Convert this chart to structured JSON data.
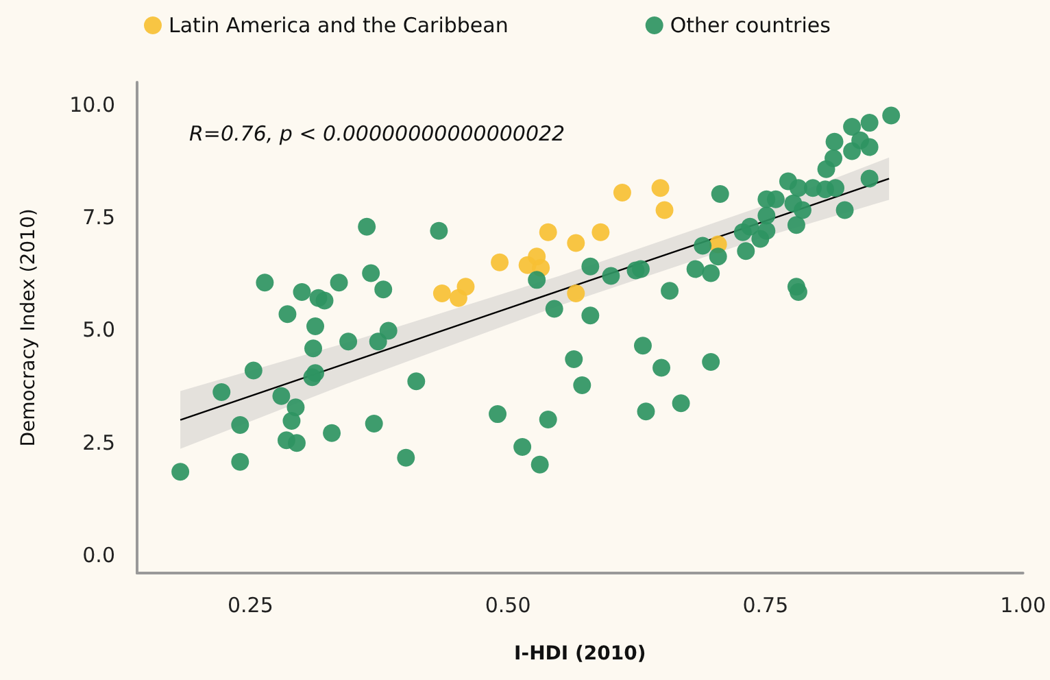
{
  "chart_data": {
    "type": "scatter",
    "xlabel": "I-HDI (2010)",
    "ylabel": "Democracy Index (2010)",
    "annotations": [
      "R=0.76, p < 0.00000000000000022"
    ],
    "xlim": [
      0.14,
      1.0
    ],
    "xticks": [
      {
        "value": 0.25,
        "label": "0.25"
      },
      {
        "value": 0.5,
        "label": "0.50"
      },
      {
        "value": 0.75,
        "label": "0.75"
      },
      {
        "value": 1.0,
        "label": "1.00"
      }
    ],
    "ylim": [
      -0.4,
      10.5
    ],
    "yticks": [
      {
        "value": 0,
        "label": "0.0"
      },
      {
        "value": 2.5,
        "label": "2.5"
      },
      {
        "value": 5,
        "label": "5.0"
      },
      {
        "value": 7.5,
        "label": "7.5"
      },
      {
        "value": 10,
        "label": "10.0"
      }
    ],
    "grid": false,
    "legend": "top",
    "series": [
      {
        "name": "Latin America and the Caribbean",
        "marker": "circle",
        "color": "#f7c034",
        "x": [
          0.436,
          0.452,
          0.459,
          0.492,
          0.519,
          0.528,
          0.532,
          0.539,
          0.566,
          0.566,
          0.59,
          0.611,
          0.648,
          0.652,
          0.704
        ],
        "values": [
          5.81,
          5.71,
          5.96,
          6.5,
          6.44,
          6.63,
          6.38,
          7.17,
          6.93,
          5.81,
          7.17,
          8.05,
          8.15,
          7.66,
          6.9
        ]
      },
      {
        "name": "Other countries",
        "marker": "circle",
        "color": "#2e9462",
        "x": [
          0.182,
          0.222,
          0.24,
          0.24,
          0.253,
          0.264,
          0.28,
          0.286,
          0.29,
          0.294,
          0.285,
          0.295,
          0.3,
          0.31,
          0.313,
          0.311,
          0.313,
          0.316,
          0.322,
          0.329,
          0.336,
          0.345,
          0.363,
          0.367,
          0.37,
          0.374,
          0.379,
          0.384,
          0.401,
          0.411,
          0.433,
          0.49,
          0.514,
          0.528,
          0.531,
          0.539,
          0.545,
          0.564,
          0.572,
          0.58,
          0.58,
          0.6,
          0.624,
          0.629,
          0.631,
          0.634,
          0.649,
          0.657,
          0.668,
          0.689,
          0.704,
          0.682,
          0.697,
          0.728,
          0.735,
          0.731,
          0.745,
          0.751,
          0.751,
          0.751,
          0.76,
          0.78,
          0.777,
          0.786,
          0.772,
          0.782,
          0.796,
          0.808,
          0.818,
          0.827,
          0.809,
          0.816,
          0.817,
          0.834,
          0.834,
          0.842,
          0.851,
          0.851,
          0.851,
          0.872,
          0.78,
          0.782,
          0.706,
          0.697
        ],
        "values": [
          1.85,
          3.62,
          2.07,
          2.89,
          4.1,
          6.05,
          3.53,
          5.35,
          2.98,
          3.28,
          2.55,
          2.49,
          5.84,
          3.95,
          4.04,
          4.59,
          5.08,
          5.71,
          5.65,
          2.71,
          6.05,
          4.74,
          7.29,
          6.26,
          2.92,
          4.74,
          5.9,
          4.98,
          2.16,
          3.86,
          7.2,
          3.13,
          2.4,
          6.11,
          2.01,
          3.01,
          5.47,
          4.35,
          3.77,
          6.41,
          5.32,
          6.2,
          6.32,
          6.35,
          4.65,
          3.19,
          4.16,
          5.87,
          3.37,
          6.87,
          6.63,
          6.35,
          6.26,
          7.17,
          7.29,
          6.75,
          7.02,
          7.2,
          7.54,
          7.9,
          7.9,
          7.33,
          7.81,
          7.66,
          8.3,
          8.15,
          8.15,
          8.12,
          8.15,
          7.66,
          8.57,
          8.81,
          9.18,
          8.97,
          9.51,
          9.21,
          9.06,
          8.36,
          9.6,
          9.76,
          5.96,
          5.84,
          8.02,
          4.29
        ]
      },
      {
        "type": "line",
        "marker": "none",
        "color": "#000000",
        "x": [
          0.182,
          0.35,
          0.55,
          0.75,
          0.87
        ],
        "values": [
          3.0,
          4.31,
          5.87,
          7.42,
          8.36
        ],
        "lower": [
          2.36,
          3.86,
          5.54,
          7.07,
          7.89
        ],
        "upper": [
          3.64,
          4.76,
          6.2,
          7.77,
          8.83
        ]
      }
    ]
  }
}
